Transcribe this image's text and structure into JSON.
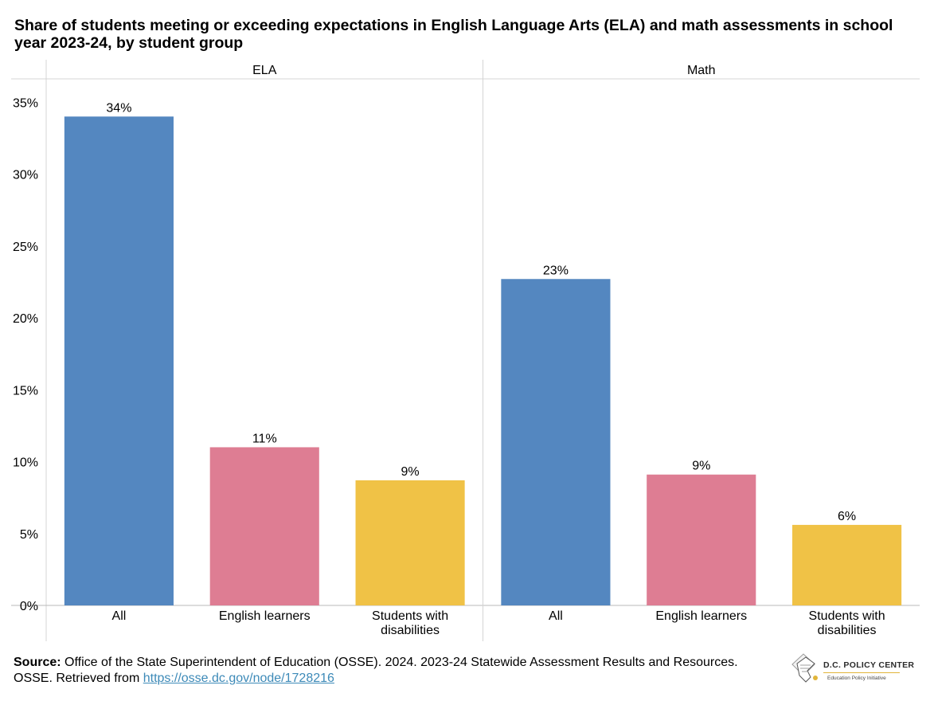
{
  "chart_data": {
    "type": "bar",
    "title": "Share of students meeting or exceeding expectations in English Language Arts (ELA) and math assessments in school year 2023-24, by student group",
    "ylim": [
      0,
      36
    ],
    "yticks": [
      "0%",
      "5%",
      "10%",
      "15%",
      "20%",
      "25%",
      "30%",
      "35%"
    ],
    "ytick_values": [
      0,
      5,
      10,
      15,
      20,
      25,
      30,
      35
    ],
    "grid": false,
    "colors": {
      "All": "#5487c0",
      "English learners": "#de7d93",
      "Students with disabilities": "#f0c246"
    },
    "panels": [
      {
        "name": "ELA",
        "categories": [
          "All",
          "English learners",
          "Students with disabilities"
        ],
        "category_lines": [
          [
            "All"
          ],
          [
            "English learners"
          ],
          [
            "Students with",
            "disabilities"
          ]
        ],
        "values": [
          34,
          11,
          8.7
        ],
        "labels": [
          "34%",
          "11%",
          "9%"
        ]
      },
      {
        "name": "Math",
        "categories": [
          "All",
          "English learners",
          "Students with disabilities"
        ],
        "category_lines": [
          [
            "All"
          ],
          [
            "English learners"
          ],
          [
            "Students with",
            "disabilities"
          ]
        ],
        "values": [
          22.7,
          9.1,
          5.6
        ],
        "labels": [
          "23%",
          "9%",
          "6%"
        ]
      }
    ]
  },
  "source": {
    "label": "Source:",
    "text": "Office of the State Superintendent of Education (OSSE). 2024. 2023-24 Statewide Assessment Results and Resources. OSSE. Retrieved from",
    "link_text": "https://osse.dc.gov/node/1728216"
  },
  "logo": {
    "name": "D.C. POLICY CENTER",
    "subtitle": "Education Policy Initiative"
  }
}
